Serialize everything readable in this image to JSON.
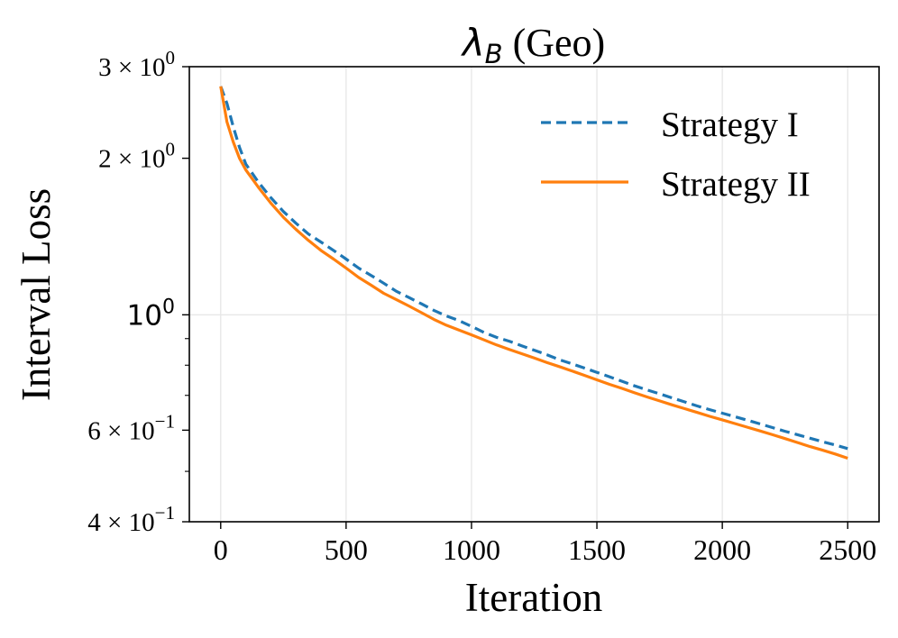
{
  "chart_data": {
    "type": "line",
    "title": "(Geo)",
    "title_symbol": "λ",
    "title_subscript": "B",
    "xlabel": "Iteration",
    "ylabel": "Interval Loss",
    "yscale": "log",
    "xlim": [
      -125,
      2625
    ],
    "ylim": [
      0.4,
      3.0
    ],
    "grid": true,
    "legend_position": "top-right",
    "xticks": [
      {
        "value": 0,
        "label": "0"
      },
      {
        "value": 500,
        "label": "500"
      },
      {
        "value": 1000,
        "label": "1000"
      },
      {
        "value": 1500,
        "label": "1500"
      },
      {
        "value": 2000,
        "label": "2000"
      },
      {
        "value": 2500,
        "label": "2500"
      }
    ],
    "yticks": [
      {
        "value": 3.0,
        "mantissa": "3",
        "exponent": "0"
      },
      {
        "value": 2.0,
        "mantissa": "2",
        "exponent": "0"
      },
      {
        "value": 1.0,
        "base": "10",
        "exponent": "0"
      },
      {
        "value": 0.6,
        "mantissa": "6",
        "exponent": "−1"
      },
      {
        "value": 0.4,
        "mantissa": "4",
        "exponent": "−1"
      }
    ],
    "y_minor_ticks": [
      0.5,
      0.7,
      0.8,
      0.9
    ],
    "series": [
      {
        "name": "Strategy I",
        "color": "#1f77b4",
        "dash": true,
        "x": [
          0,
          25,
          50,
          75,
          100,
          150,
          200,
          250,
          300,
          350,
          400,
          450,
          500,
          550,
          600,
          650,
          700,
          750,
          800,
          850,
          900,
          950,
          1000,
          1050,
          1100,
          1150,
          1200,
          1250,
          1300,
          1350,
          1400,
          1450,
          1500,
          1550,
          1600,
          1650,
          1700,
          1750,
          1800,
          1850,
          1900,
          1950,
          2000,
          2050,
          2100,
          2150,
          2200,
          2250,
          2300,
          2350,
          2400,
          2450,
          2500
        ],
        "values": [
          2.75,
          2.55,
          2.3,
          2.1,
          1.95,
          1.8,
          1.68,
          1.58,
          1.5,
          1.43,
          1.38,
          1.33,
          1.28,
          1.23,
          1.19,
          1.15,
          1.11,
          1.08,
          1.05,
          1.02,
          0.995,
          0.975,
          0.95,
          0.925,
          0.905,
          0.89,
          0.872,
          0.855,
          0.838,
          0.82,
          0.805,
          0.79,
          0.775,
          0.76,
          0.745,
          0.73,
          0.717,
          0.705,
          0.692,
          0.68,
          0.668,
          0.657,
          0.647,
          0.637,
          0.627,
          0.617,
          0.607,
          0.597,
          0.588,
          0.579,
          0.57,
          0.562,
          0.553
        ]
      },
      {
        "name": "Strategy II",
        "color": "#ff7f0e",
        "dash": false,
        "x": [
          0,
          25,
          50,
          75,
          100,
          150,
          200,
          250,
          300,
          350,
          400,
          450,
          500,
          550,
          600,
          650,
          700,
          750,
          800,
          850,
          900,
          950,
          1000,
          1050,
          1100,
          1150,
          1200,
          1250,
          1300,
          1350,
          1400,
          1450,
          1500,
          1550,
          1600,
          1650,
          1700,
          1750,
          1800,
          1850,
          1900,
          1950,
          2000,
          2050,
          2100,
          2150,
          2200,
          2250,
          2300,
          2350,
          2400,
          2450,
          2500
        ],
        "values": [
          2.75,
          2.35,
          2.15,
          2.0,
          1.9,
          1.76,
          1.64,
          1.54,
          1.46,
          1.39,
          1.33,
          1.28,
          1.23,
          1.18,
          1.14,
          1.1,
          1.07,
          1.04,
          1.01,
          0.98,
          0.955,
          0.935,
          0.915,
          0.895,
          0.875,
          0.858,
          0.842,
          0.826,
          0.81,
          0.795,
          0.78,
          0.765,
          0.75,
          0.735,
          0.722,
          0.708,
          0.695,
          0.683,
          0.671,
          0.66,
          0.649,
          0.638,
          0.628,
          0.618,
          0.608,
          0.598,
          0.588,
          0.578,
          0.568,
          0.558,
          0.549,
          0.54,
          0.53
        ]
      }
    ]
  }
}
